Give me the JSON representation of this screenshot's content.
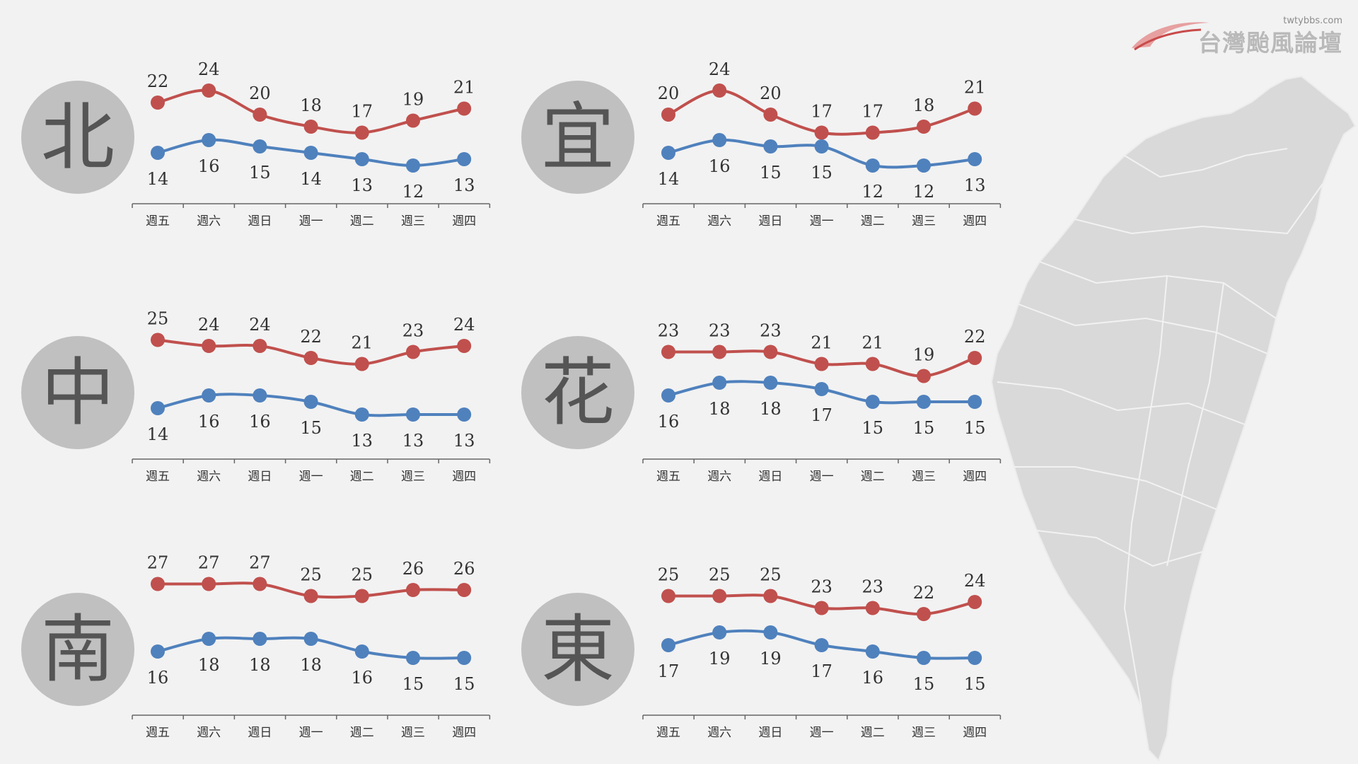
{
  "branding": {
    "site_url": "twtybbs.com",
    "logo_text": "台灣颱風論壇"
  },
  "colors": {
    "high": "#c0504d",
    "low": "#4f81bd",
    "circle": "#c0c0c0",
    "map": "#d9d9d9"
  },
  "chart_data": [
    {
      "type": "line",
      "region": "北",
      "categories": [
        "週五",
        "週六",
        "週日",
        "週一",
        "週二",
        "週三",
        "週四"
      ],
      "series": [
        {
          "values": [
            22,
            24,
            20,
            18,
            17,
            19,
            21
          ]
        },
        {
          "values": [
            14,
            16,
            15,
            14,
            13,
            12,
            13
          ]
        }
      ]
    },
    {
      "type": "line",
      "region": "宜",
      "categories": [
        "週五",
        "週六",
        "週日",
        "週一",
        "週二",
        "週三",
        "週四"
      ],
      "series": [
        {
          "values": [
            20,
            24,
            20,
            17,
            17,
            18,
            21
          ]
        },
        {
          "values": [
            14,
            16,
            15,
            15,
            12,
            12,
            13
          ]
        }
      ]
    },
    {
      "type": "line",
      "region": "中",
      "categories": [
        "週五",
        "週六",
        "週日",
        "週一",
        "週二",
        "週三",
        "週四"
      ],
      "series": [
        {
          "values": [
            25,
            24,
            24,
            22,
            21,
            23,
            24
          ]
        },
        {
          "values": [
            14,
            16,
            16,
            15,
            13,
            13,
            13
          ]
        }
      ]
    },
    {
      "type": "line",
      "region": "花",
      "categories": [
        "週五",
        "週六",
        "週日",
        "週一",
        "週二",
        "週三",
        "週四"
      ],
      "series": [
        {
          "values": [
            23,
            23,
            23,
            21,
            21,
            19,
            22
          ]
        },
        {
          "values": [
            16,
            18,
            18,
            17,
            15,
            15,
            15
          ]
        }
      ]
    },
    {
      "type": "line",
      "region": "南",
      "categories": [
        "週五",
        "週六",
        "週日",
        "週一",
        "週二",
        "週三",
        "週四"
      ],
      "series": [
        {
          "values": [
            27,
            27,
            27,
            25,
            25,
            26,
            26
          ]
        },
        {
          "values": [
            16,
            18,
            18,
            18,
            16,
            15,
            15
          ]
        }
      ]
    },
    {
      "type": "line",
      "region": "東",
      "categories": [
        "週五",
        "週六",
        "週日",
        "週一",
        "週二",
        "週三",
        "週四"
      ],
      "series": [
        {
          "values": [
            25,
            25,
            25,
            23,
            23,
            22,
            24
          ]
        },
        {
          "values": [
            17,
            19,
            19,
            17,
            16,
            15,
            15
          ]
        }
      ]
    }
  ]
}
